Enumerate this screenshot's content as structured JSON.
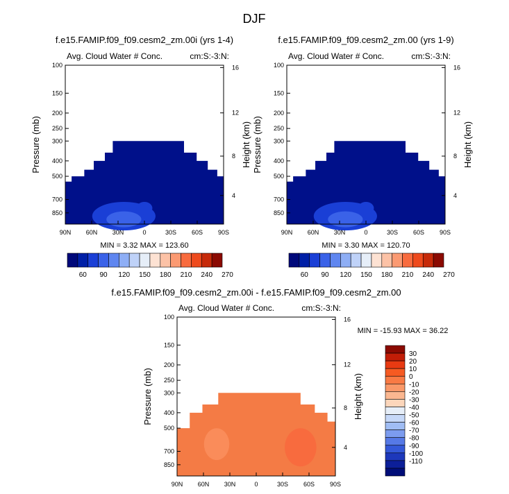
{
  "figure_title": "DJF",
  "chart_data": [
    {
      "type": "heatmap",
      "title": "f.e15.FAMIP.f09_f09.cesm2_zm.00i (yrs 1-4)",
      "subtitle_left": "Avg. Cloud Water # Conc.",
      "subtitle_right": "cm:S:-3:N:",
      "ylabel": "Pressure (mb)",
      "ylabel_right": "Height (km)",
      "x_ticks": [
        "90N",
        "60N",
        "30N",
        "0",
        "30S",
        "60S",
        "90S"
      ],
      "y_ticks": [
        "100",
        "150",
        "200",
        "250",
        "300",
        "400",
        "500",
        "700",
        "850"
      ],
      "y_ticks_right": [
        "16",
        "12",
        "8",
        "4"
      ],
      "stats": {
        "min_label": "MIN =",
        "min": "3.32",
        "max_label": "MAX =",
        "max": "123.60"
      },
      "colorbar_labels": [
        "60",
        "90",
        "120",
        "150",
        "180",
        "210",
        "240",
        "270"
      ]
    },
    {
      "type": "heatmap",
      "title": "f.e15.FAMIP.f09_f09.cesm2_zm.00 (yrs 1-9)",
      "subtitle_left": "Avg. Cloud Water # Conc.",
      "subtitle_right": "cm:S:-3:N:",
      "ylabel": "Pressure (mb)",
      "ylabel_right": "Height (km)",
      "x_ticks": [
        "90N",
        "60N",
        "30N",
        "0",
        "30S",
        "60S",
        "90S"
      ],
      "y_ticks": [
        "100",
        "150",
        "200",
        "250",
        "300",
        "400",
        "500",
        "700",
        "850"
      ],
      "y_ticks_right": [
        "16",
        "12",
        "8",
        "4"
      ],
      "stats": {
        "min_label": "MIN =",
        "min": "3.30",
        "max_label": "MAX =",
        "max": "120.70"
      },
      "colorbar_labels": [
        "60",
        "90",
        "120",
        "150",
        "180",
        "210",
        "240",
        "270"
      ]
    },
    {
      "type": "heatmap",
      "title": "f.e15.FAMIP.f09_f09.cesm2_zm.00i - f.e15.FAMIP.f09_f09.cesm2_zm.00",
      "subtitle_left": "Avg. Cloud Water # Conc.",
      "subtitle_right": "cm:S:-3:N:",
      "ylabel": "Pressure (mb)",
      "ylabel_right": "Height (km)",
      "x_ticks": [
        "90N",
        "60N",
        "30N",
        "0",
        "30S",
        "60S",
        "90S"
      ],
      "y_ticks": [
        "100",
        "150",
        "200",
        "250",
        "300",
        "400",
        "500",
        "700",
        "850"
      ],
      "y_ticks_right": [
        "16",
        "12",
        "8",
        "4"
      ],
      "stats": {
        "min_label": "MIN =",
        "min": "-15.93",
        "max_label": "MAX =",
        "max": "36.22"
      },
      "colorbar_labels": [
        "30",
        "20",
        "10",
        "0",
        "-10",
        "-20",
        "-30",
        "-40",
        "-50",
        "-60",
        "-70",
        "-80",
        "-90",
        "-100",
        "-110"
      ]
    }
  ],
  "colors": {
    "abs_scale": [
      "#00097a",
      "#001fa6",
      "#1a3fd6",
      "#3a62e8",
      "#5f86f0",
      "#8eaef5",
      "#bfd2f8",
      "#e6eef8",
      "#fde2d3",
      "#fcc2a6",
      "#fb9a72",
      "#f86b3e",
      "#ee4a1d",
      "#c62a0a",
      "#8b0a02"
    ],
    "diff_scale": [
      "#8b0a02",
      "#c21d07",
      "#e83a12",
      "#f65a22",
      "#f97a44",
      "#fa9868",
      "#fbb790",
      "#fcd6bb",
      "#e6eef8",
      "#c6d8f8",
      "#a0bdf4",
      "#7c9cef",
      "#5679e6",
      "#3458d8",
      "#1d38bb",
      "#0c1f99",
      "#000d78"
    ],
    "field_blue": "#00108a",
    "field_orange": "#f47b45"
  }
}
